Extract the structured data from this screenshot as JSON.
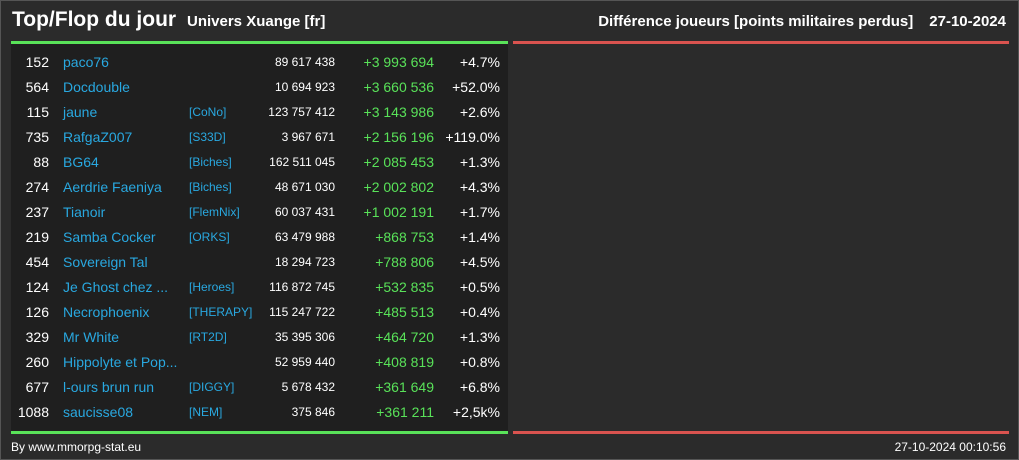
{
  "header": {
    "title": "Top/Flop du jour",
    "universe": "Univers Xuange [fr]",
    "category": "Différence joueurs [points militaires perdus]",
    "date": "27-10-2024"
  },
  "colors": {
    "background": "#2b2b2b",
    "panel": "#1f1f1f",
    "top_accent": "#59e259",
    "flop_accent": "#d9534f",
    "link": "#29a8e0",
    "positive": "#59e259"
  },
  "top": [
    {
      "rank": "152",
      "name": "paco76",
      "guild": "",
      "total": "89 617 438",
      "diff": "+3 993 694",
      "pct": "+4.7%"
    },
    {
      "rank": "564",
      "name": "Docdouble",
      "guild": "",
      "total": "10 694 923",
      "diff": "+3 660 536",
      "pct": "+52.0%"
    },
    {
      "rank": "115",
      "name": "jaune",
      "guild": "[CoNo]",
      "total": "123 757 412",
      "diff": "+3 143 986",
      "pct": "+2.6%"
    },
    {
      "rank": "735",
      "name": "RafgaZ007",
      "guild": "[S33D]",
      "total": "3 967 671",
      "diff": "+2 156 196",
      "pct": "+119.0%"
    },
    {
      "rank": "88",
      "name": "BG64",
      "guild": "[Biches]",
      "total": "162 511 045",
      "diff": "+2 085 453",
      "pct": "+1.3%"
    },
    {
      "rank": "274",
      "name": "Aerdrie Faeniya",
      "guild": "[Biches]",
      "total": "48 671 030",
      "diff": "+2 002 802",
      "pct": "+4.3%"
    },
    {
      "rank": "237",
      "name": "Tianoir",
      "guild": "[FlemNix]",
      "total": "60 037 431",
      "diff": "+1 002 191",
      "pct": "+1.7%"
    },
    {
      "rank": "219",
      "name": "Samba Cocker",
      "guild": "[ORKS]",
      "total": "63 479 988",
      "diff": "+868 753",
      "pct": "+1.4%"
    },
    {
      "rank": "454",
      "name": "Sovereign Tal",
      "guild": "",
      "total": "18 294 723",
      "diff": "+788 806",
      "pct": "+4.5%"
    },
    {
      "rank": "124",
      "name": "Je Ghost chez ...",
      "guild": "[Heroes]",
      "total": "116 872 745",
      "diff": "+532 835",
      "pct": "+0.5%"
    },
    {
      "rank": "126",
      "name": "Necrophoenix",
      "guild": "[THERAPY]",
      "total": "115 247 722",
      "diff": "+485 513",
      "pct": "+0.4%"
    },
    {
      "rank": "329",
      "name": "Mr White",
      "guild": "[RT2D]",
      "total": "35 395 306",
      "diff": "+464 720",
      "pct": "+1.3%"
    },
    {
      "rank": "260",
      "name": "Hippolyte et Pop...",
      "guild": "",
      "total": "52 959 440",
      "diff": "+408 819",
      "pct": "+0.8%"
    },
    {
      "rank": "677",
      "name": "l-ours brun run",
      "guild": "[DIGGY]",
      "total": "5 678 432",
      "diff": "+361 649",
      "pct": "+6.8%"
    },
    {
      "rank": "1088",
      "name": "saucisse08",
      "guild": "[NEM]",
      "total": "375 846",
      "diff": "+361 211",
      "pct": "+2,5k%"
    }
  ],
  "footer": {
    "source": "By www.mmorpg-stat.eu",
    "generated": "27-10-2024 00:10:56"
  }
}
